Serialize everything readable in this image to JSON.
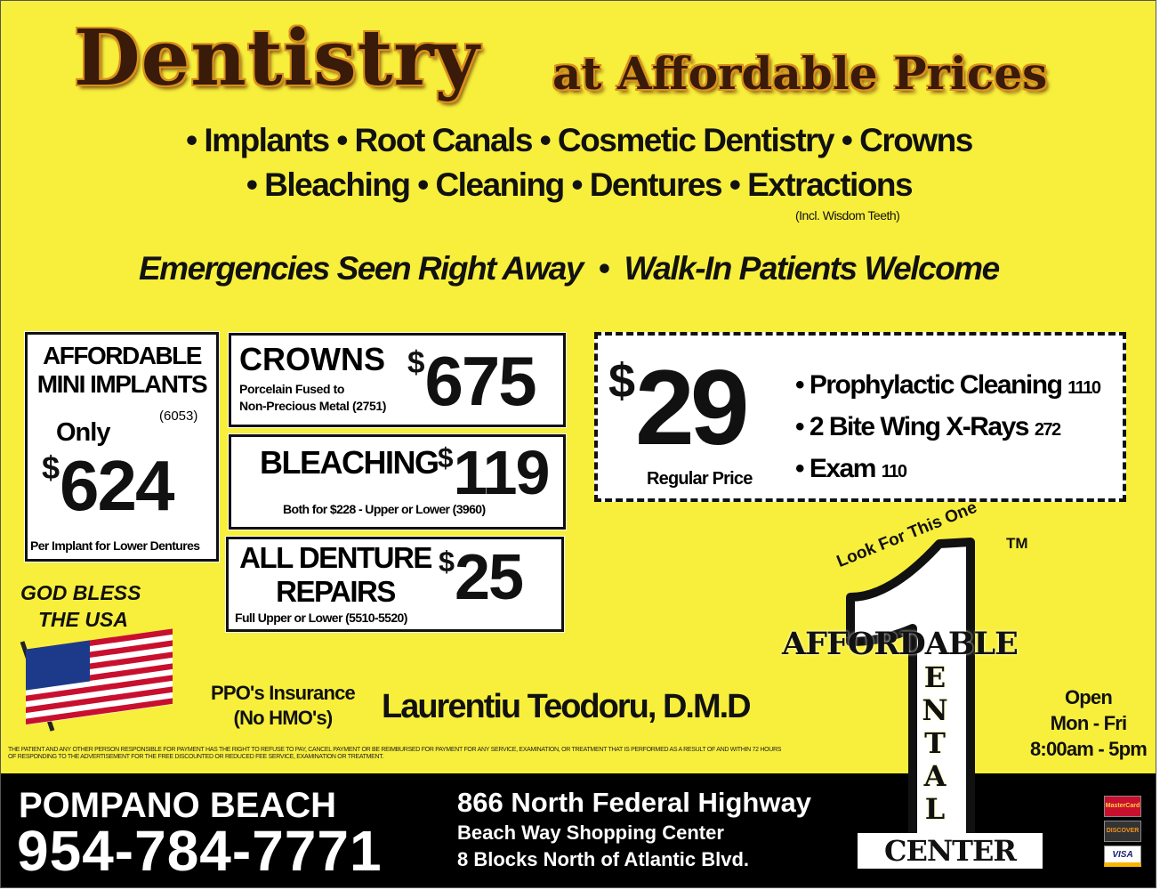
{
  "header": {
    "title_main": "Dentistry",
    "title_sub": "at Affordable Prices"
  },
  "services": {
    "line1": "• Implants • Root Canals • Cosmetic Dentistry • Crowns",
    "line2": "• Bleaching • Cleaning • Dentures • Extractions",
    "note": "(Incl. Wisdom Teeth)"
  },
  "tagline": "Emergencies Seen Right Away  •  Walk-In Patients Welcome",
  "offers": {
    "implants": {
      "title1": "AFFORDABLE",
      "title2": "MINI IMPLANTS",
      "code": "(6053)",
      "only": "Only",
      "price_symbol": "$",
      "price": "624",
      "footer": "Per Implant for Lower Dentures"
    },
    "crowns": {
      "title": "CROWNS",
      "desc1": "Porcelain Fused to",
      "desc2": "Non-Precious Metal (2751)",
      "price_symbol": "$",
      "price": "675"
    },
    "bleaching": {
      "title": "BLEACHING",
      "desc": "Both for $228 - Upper or Lower (3960)",
      "price_symbol": "$",
      "price": "119"
    },
    "dentures": {
      "title1": "ALL DENTURE",
      "title2": "REPAIRS",
      "desc": "Full Upper or Lower (5510-5520)",
      "price_symbol": "$",
      "price": "25"
    },
    "cleaning": {
      "price_symbol": "$",
      "price": "29",
      "label": "Regular Price",
      "items": [
        {
          "name": "• Prophylactic Cleaning",
          "code": "1110"
        },
        {
          "name": "• 2 Bite Wing X-Rays",
          "code": "272"
        },
        {
          "name": "• Exam",
          "code": "110"
        }
      ]
    }
  },
  "patriotic": {
    "line1": "GOD BLESS",
    "line2": "THE USA"
  },
  "insurance": {
    "line1": "PPO's Insurance",
    "line2": "(No HMO's)"
  },
  "dentist": "Laurentiu Teodoru, D.M.D",
  "disclaimer": {
    "line1": "THE PATIENT AND ANY OTHER PERSON RESPONSIBLE FOR PAYMENT HAS THE RIGHT TO REFUSE TO PAY, CANCEL PAYMENT OR BE REIMBURSED FOR PAYMENT FOR ANY SERVICE, EXAMINATION, OR TREATMENT THAT IS PERFORMED AS A RESULT OF AND WITHIN 72 HOURS",
    "line2": "OF RESPONDING TO THE ADVERTISEMENT FOR THE FREE DISCOUNTED OR REDUCED FEE SERVICE, EXAMINATION OR TREATMENT."
  },
  "logo": {
    "tagline": "Look For This One",
    "tm": "TM",
    "word1": "AFFORDABLE",
    "vertical": "ENTAL",
    "word3": "CENTER"
  },
  "hours": {
    "line1": "Open",
    "line2": "Mon - Fri",
    "line3": "8:00am - 5pm"
  },
  "footer": {
    "city": "POMPANO BEACH",
    "phone": "954-784-7771",
    "address1": "866 North Federal Highway",
    "address2": "Beach Way Shopping Center",
    "address3": "8  Blocks North of Atlantic Blvd.",
    "cards": [
      "MasterCard",
      "DISCOVER",
      "VISA"
    ]
  },
  "colors": {
    "background": "#f8ef3c",
    "title": "#3a1a08",
    "band": "#000000"
  }
}
